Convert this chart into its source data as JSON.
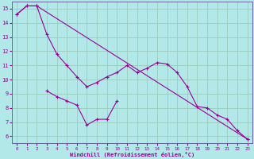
{
  "xlabel": "Windchill (Refroidissement éolien,°C)",
  "bg_color": "#b3e8e8",
  "grid_color": "#99ccbb",
  "line_color": "#990099",
  "spine_color": "#666699",
  "ylim": [
    5.5,
    15.5
  ],
  "xlim": [
    -0.5,
    23.5
  ],
  "yticks": [
    6,
    7,
    8,
    9,
    10,
    11,
    12,
    13,
    14,
    15
  ],
  "xticks": [
    0,
    1,
    2,
    3,
    4,
    5,
    6,
    7,
    8,
    9,
    10,
    11,
    12,
    13,
    14,
    15,
    16,
    17,
    18,
    19,
    20,
    21,
    22,
    23
  ],
  "line1_x": [
    0,
    1,
    2,
    23
  ],
  "line1_y": [
    14.6,
    15.2,
    15.2,
    5.8
  ],
  "line2_x": [
    0,
    1,
    2,
    3,
    4,
    5,
    6,
    7,
    8,
    9,
    10,
    11,
    12,
    13,
    14,
    15,
    16,
    17,
    18,
    19,
    20,
    21,
    22,
    23
  ],
  "line2_y": [
    14.6,
    15.2,
    15.2,
    13.2,
    11.8,
    11.0,
    10.2,
    9.5,
    9.8,
    10.2,
    10.5,
    11.0,
    10.5,
    10.8,
    11.2,
    11.1,
    10.5,
    9.5,
    8.1,
    8.0,
    7.5,
    7.2,
    6.4,
    5.8
  ],
  "line3_x": [
    3,
    4,
    5,
    6,
    7,
    8,
    9,
    10
  ],
  "line3_y": [
    9.2,
    8.8,
    8.5,
    8.2,
    6.8,
    7.2,
    7.2,
    8.5
  ]
}
